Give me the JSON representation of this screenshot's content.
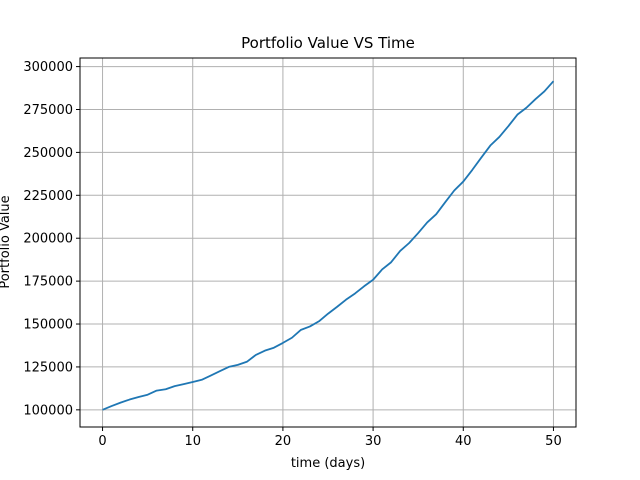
{
  "chart_data": {
    "type": "line",
    "title": "Portfolio Value VS Time",
    "xlabel": "time (days)",
    "ylabel": "Portfolio Value",
    "xlim": [
      -2.5,
      52.5
    ],
    "ylim": [
      90000,
      305000
    ],
    "xticks": [
      0,
      10,
      20,
      30,
      40,
      50
    ],
    "xtick_labels": [
      "0",
      "10",
      "20",
      "30",
      "40",
      "50"
    ],
    "yticks": [
      100000,
      125000,
      150000,
      175000,
      200000,
      225000,
      250000,
      275000,
      300000
    ],
    "ytick_labels": [
      "100000",
      "125000",
      "150000",
      "175000",
      "200000",
      "225000",
      "250000",
      "275000",
      "300000"
    ],
    "grid": true,
    "series": [
      {
        "color": "#1f77b4",
        "x": [
          0,
          1,
          2,
          3,
          4,
          5,
          6,
          7,
          8,
          9,
          10,
          11,
          12,
          13,
          14,
          15,
          16,
          17,
          18,
          19,
          20,
          21,
          22,
          23,
          24,
          25,
          26,
          27,
          28,
          29,
          30,
          31,
          32,
          33,
          34,
          35,
          36,
          37,
          38,
          39,
          40,
          41,
          42,
          43,
          44,
          45,
          46,
          47,
          48,
          49,
          50
        ],
        "y": [
          100000,
          102200,
          104200,
          106000,
          107500,
          108800,
          111200,
          112000,
          113800,
          115000,
          116200,
          117500,
          120000,
          122500,
          125000,
          126200,
          128000,
          132000,
          134500,
          136200,
          139000,
          142000,
          146600,
          148600,
          151600,
          156000,
          160000,
          164200,
          167800,
          172000,
          175800,
          181800,
          186000,
          192600,
          197200,
          203000,
          209200,
          214000,
          221000,
          227800,
          233000,
          239800,
          247000,
          254000,
          259000,
          265300,
          272000,
          276000,
          281000,
          285600,
          291500
        ]
      }
    ]
  }
}
